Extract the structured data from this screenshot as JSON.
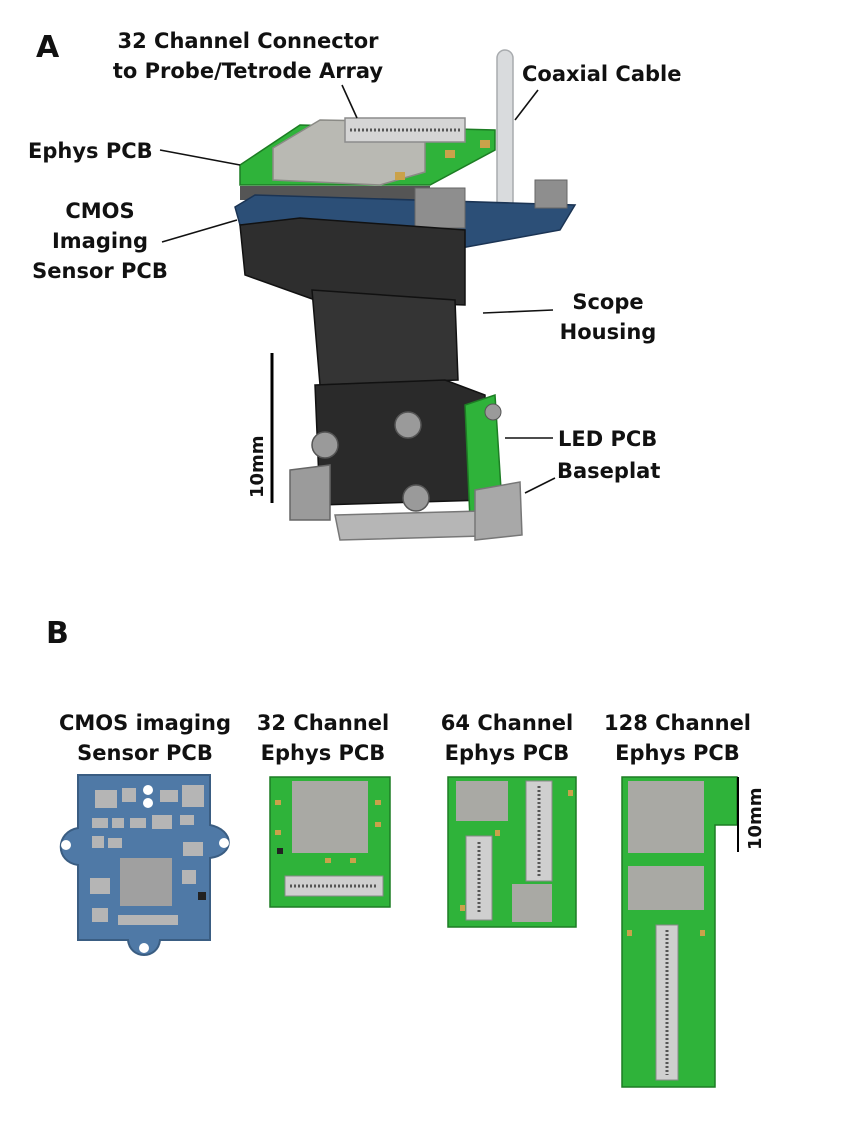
{
  "panel_a": {
    "letter": "A",
    "labels": {
      "connector": [
        "32 Channel Connector",
        "to Probe/Tetrode Array"
      ],
      "coax": "Coaxial Cable",
      "ephys": "Ephys PCB",
      "cmos": [
        "CMOS",
        "Imaging",
        "Sensor PCB"
      ],
      "housing": [
        "Scope",
        "Housing"
      ],
      "led": "LED PCB",
      "baseplate": "Baseplat"
    },
    "scale_label": "10mm"
  },
  "panel_b": {
    "letter": "B",
    "boards": [
      {
        "title": [
          "CMOS imaging",
          "Sensor PCB"
        ]
      },
      {
        "title": [
          "32 Channel",
          "Ephys PCB"
        ]
      },
      {
        "title": [
          "64 Channel",
          "Ephys PCB"
        ]
      },
      {
        "title": [
          "128 Channel",
          "Ephys PCB"
        ]
      }
    ],
    "scale_label": "10mm"
  },
  "colors": {
    "pcb_green": "#2fb33a",
    "pcb_blue": "#4f79a6",
    "housing_dark": "#2e2e2e",
    "chip_gray": "#a9a9a4",
    "connector_gray": "#cfcfcf"
  }
}
